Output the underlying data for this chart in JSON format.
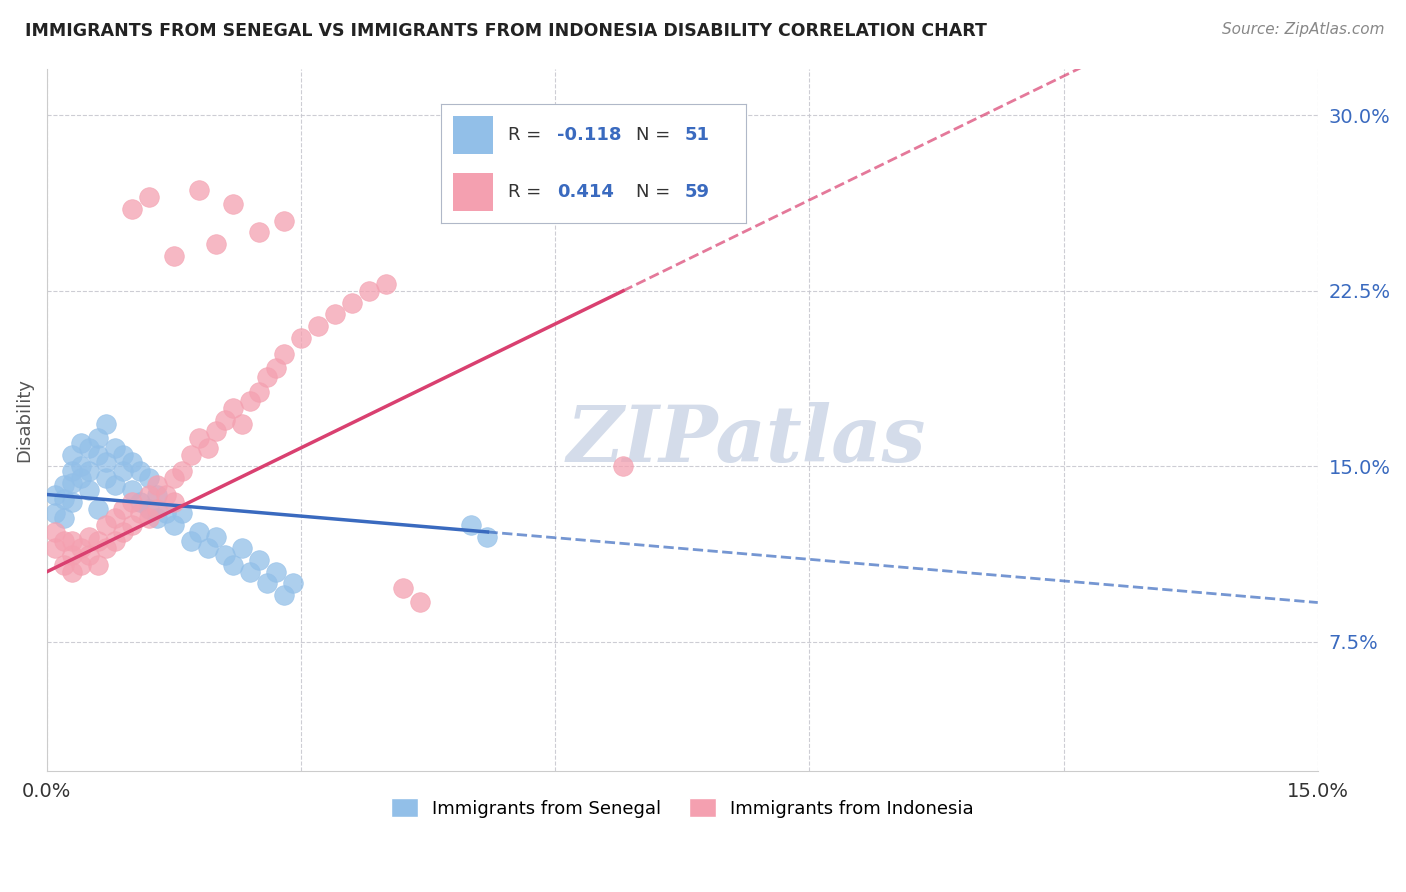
{
  "title": "IMMIGRANTS FROM SENEGAL VS IMMIGRANTS FROM INDONESIA DISABILITY CORRELATION CHART",
  "source": "Source: ZipAtlas.com",
  "ylabel": "Disability",
  "xlim": [
    0.0,
    0.15
  ],
  "ylim": [
    0.02,
    0.32
  ],
  "ytick_positions": [
    0.075,
    0.15,
    0.225,
    0.3
  ],
  "ytick_labels": [
    "7.5%",
    "15.0%",
    "22.5%",
    "30.0%"
  ],
  "senegal_color": "#92bfe8",
  "indonesia_color": "#f4a0b0",
  "senegal_line_color": "#3a6abf",
  "indonesia_line_color": "#d94070",
  "background_color": "#ffffff",
  "grid_color": "#c8c8d0",
  "watermark": "ZIPatlas",
  "watermark_color": "#d4dcea",
  "senegal_x": [
    0.001,
    0.001,
    0.002,
    0.002,
    0.002,
    0.003,
    0.003,
    0.003,
    0.003,
    0.004,
    0.004,
    0.004,
    0.005,
    0.005,
    0.005,
    0.006,
    0.006,
    0.006,
    0.007,
    0.007,
    0.007,
    0.008,
    0.008,
    0.009,
    0.009,
    0.01,
    0.01,
    0.011,
    0.011,
    0.012,
    0.012,
    0.013,
    0.013,
    0.014,
    0.015,
    0.016,
    0.017,
    0.018,
    0.019,
    0.02,
    0.021,
    0.022,
    0.023,
    0.024,
    0.025,
    0.026,
    0.027,
    0.028,
    0.029,
    0.05,
    0.052
  ],
  "senegal_y": [
    0.13,
    0.138,
    0.142,
    0.128,
    0.136,
    0.148,
    0.155,
    0.143,
    0.135,
    0.15,
    0.16,
    0.145,
    0.158,
    0.148,
    0.14,
    0.162,
    0.155,
    0.132,
    0.168,
    0.152,
    0.145,
    0.158,
    0.142,
    0.155,
    0.148,
    0.152,
    0.14,
    0.148,
    0.135,
    0.145,
    0.132,
    0.138,
    0.128,
    0.13,
    0.125,
    0.13,
    0.118,
    0.122,
    0.115,
    0.12,
    0.112,
    0.108,
    0.115,
    0.105,
    0.11,
    0.1,
    0.105,
    0.095,
    0.1,
    0.125,
    0.12
  ],
  "indonesia_x": [
    0.001,
    0.001,
    0.002,
    0.002,
    0.003,
    0.003,
    0.003,
    0.004,
    0.004,
    0.005,
    0.005,
    0.006,
    0.006,
    0.007,
    0.007,
    0.008,
    0.008,
    0.009,
    0.009,
    0.01,
    0.01,
    0.011,
    0.012,
    0.012,
    0.013,
    0.013,
    0.014,
    0.015,
    0.015,
    0.016,
    0.017,
    0.018,
    0.019,
    0.02,
    0.021,
    0.022,
    0.023,
    0.024,
    0.025,
    0.026,
    0.027,
    0.028,
    0.03,
    0.032,
    0.034,
    0.036,
    0.038,
    0.04,
    0.042,
    0.044,
    0.025,
    0.02,
    0.015,
    0.028,
    0.01,
    0.012,
    0.018,
    0.022,
    0.068
  ],
  "indonesia_y": [
    0.115,
    0.122,
    0.118,
    0.108,
    0.112,
    0.118,
    0.105,
    0.115,
    0.108,
    0.12,
    0.112,
    0.118,
    0.108,
    0.125,
    0.115,
    0.128,
    0.118,
    0.132,
    0.122,
    0.135,
    0.125,
    0.13,
    0.138,
    0.128,
    0.142,
    0.132,
    0.138,
    0.145,
    0.135,
    0.148,
    0.155,
    0.162,
    0.158,
    0.165,
    0.17,
    0.175,
    0.168,
    0.178,
    0.182,
    0.188,
    0.192,
    0.198,
    0.205,
    0.21,
    0.215,
    0.22,
    0.225,
    0.228,
    0.098,
    0.092,
    0.25,
    0.245,
    0.24,
    0.255,
    0.26,
    0.265,
    0.268,
    0.262,
    0.15
  ],
  "senegal_line_x0": 0.0,
  "senegal_line_y0": 0.138,
  "senegal_line_x1": 0.052,
  "senegal_line_y1": 0.122,
  "indonesia_line_x0": 0.0,
  "indonesia_line_y0": 0.105,
  "indonesia_line_x1": 0.068,
  "indonesia_line_y1": 0.225
}
